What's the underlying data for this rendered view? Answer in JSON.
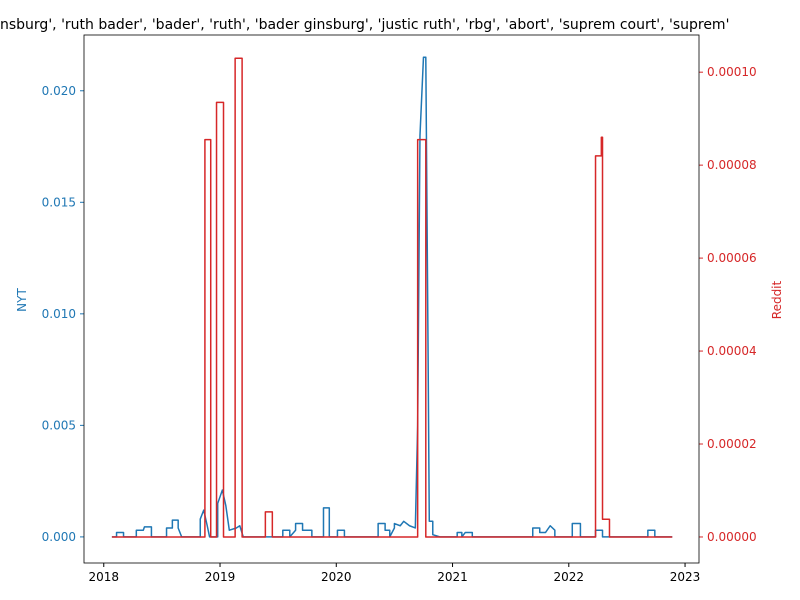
{
  "chart_data": {
    "type": "line",
    "title": "nsburg', 'ruth bader', 'bader', 'ruth', 'bader ginsburg', 'justic ruth', 'rbg', 'abort', 'suprem court', 'suprem'",
    "ylabel": "NYT",
    "y2label": "Reddit",
    "xlim": [
      2017.83,
      2023.12
    ],
    "xticks": [
      2018,
      2019,
      2020,
      2021,
      2022,
      2023
    ],
    "ylim": [
      -0.00117,
      0.0225
    ],
    "yticks": [
      {
        "value": 0,
        "label": "0.000"
      },
      0.005,
      {
        "value": 0.01,
        "label": "0.010"
      },
      0.015,
      {
        "value": 0.02,
        "label": "0.020"
      }
    ],
    "y2lim": [
      -5.6e-06,
      0.000108
    ],
    "y2ticks": [
      {
        "value": 0,
        "label": "0.00000"
      },
      {
        "value": 2e-05,
        "label": "0.00002"
      },
      {
        "value": 4e-05,
        "label": "0.00004"
      },
      {
        "value": 6e-05,
        "label": "0.00006"
      },
      {
        "value": 8e-05,
        "label": "0.00008"
      },
      {
        "value": 0.0001,
        "label": "0.00010"
      }
    ],
    "series": [
      {
        "name": "NYT",
        "color": "#1f77b4",
        "x": [
          2018.07,
          2018.11,
          2018.11,
          2018.17,
          2018.17,
          2018.28,
          2018.28,
          2018.34,
          2018.35,
          2018.41,
          2018.41,
          2018.54,
          2018.54,
          2018.59,
          2018.59,
          2018.64,
          2018.64,
          2018.67,
          2018.83,
          2018.83,
          2018.86,
          2018.89,
          2018.91,
          2018.98,
          2018.98,
          2019.02,
          2019.05,
          2019.08,
          2019.14,
          2019.17,
          2019.2,
          2019.54,
          2019.54,
          2019.6,
          2019.6,
          2019.65,
          2019.65,
          2019.71,
          2019.71,
          2019.79,
          2019.79,
          2019.89,
          2019.89,
          2019.94,
          2019.94,
          2020.01,
          2020.01,
          2020.07,
          2020.07,
          2020.36,
          2020.36,
          2020.42,
          2020.42,
          2020.46,
          2020.46,
          2020.5,
          2020.5,
          2020.55,
          2020.58,
          2020.63,
          2020.68,
          2020.7,
          2020.72,
          2020.75,
          2020.77,
          2020.79,
          2020.8,
          2020.83,
          2020.83,
          2020.89,
          2021.04,
          2021.04,
          2021.08,
          2021.08,
          2021.11,
          2021.11,
          2021.17,
          2021.17,
          2021.69,
          2021.69,
          2021.75,
          2021.75,
          2021.8,
          2021.84,
          2021.88,
          2021.88,
          2022.03,
          2022.03,
          2022.1,
          2022.1,
          2022.23,
          2022.23,
          2022.29,
          2022.29,
          2022.68,
          2022.68,
          2022.74,
          2022.74,
          2022.89
        ],
        "values": [
          0,
          0,
          0.0002,
          0.0002,
          0,
          0,
          0.0003,
          0.0003,
          0.00045,
          0.00045,
          0,
          0,
          0.0004,
          0.0004,
          0.00075,
          0.00075,
          0.0004,
          0,
          0,
          0.0008,
          0.0012,
          0.0005,
          0,
          0,
          0.0015,
          0.0021,
          0.0014,
          0.0003,
          0.0004,
          0.0005,
          0,
          0,
          0.0003,
          0.0003,
          0,
          0.0003,
          0.0006,
          0.0006,
          0.0003,
          0.0003,
          0,
          0,
          0.0013,
          0.0013,
          0,
          0,
          0.0003,
          0.0003,
          0,
          0,
          0.0006,
          0.0006,
          0.0003,
          0.0003,
          0,
          0.0004,
          0.0006,
          0.0005,
          0.0007,
          0.0005,
          0.0004,
          0.005,
          0.018,
          0.0215,
          0.0215,
          0.008,
          0.0007,
          0.0007,
          0.0001,
          0,
          0,
          0.0002,
          0.0002,
          0,
          0.0002,
          0.0002,
          0.0002,
          0,
          0,
          0.0004,
          0.0004,
          0.0002,
          0.0002,
          0.0005,
          0.0003,
          0,
          0,
          0.0006,
          0.0006,
          0,
          0,
          0.0003,
          0.0003,
          0,
          0,
          0.0003,
          0.0003,
          0,
          0
        ]
      },
      {
        "name": "Reddit",
        "color": "#d62728",
        "axis": "y2",
        "x": [
          2018.07,
          2018.87,
          2018.87,
          2018.92,
          2018.92,
          2018.97,
          2018.97,
          2019.03,
          2019.03,
          2019.13,
          2019.13,
          2019.19,
          2019.19,
          2019.39,
          2019.39,
          2019.45,
          2019.45,
          2020.7,
          2020.7,
          2020.77,
          2020.77,
          2022.23,
          2022.23,
          2022.28,
          2022.28,
          2022.29,
          2022.29,
          2022.35,
          2022.35,
          2022.89
        ],
        "values": [
          0,
          0,
          8.55e-05,
          8.55e-05,
          0,
          0,
          9.35e-05,
          9.35e-05,
          0,
          0,
          0.000103,
          0.000103,
          0,
          0,
          5.4e-06,
          5.4e-06,
          0,
          0,
          8.55e-05,
          8.55e-05,
          0,
          0,
          8.2e-05,
          8.2e-05,
          8.6e-05,
          8.6e-05,
          3.8e-06,
          3.8e-06,
          0,
          0
        ]
      }
    ]
  }
}
